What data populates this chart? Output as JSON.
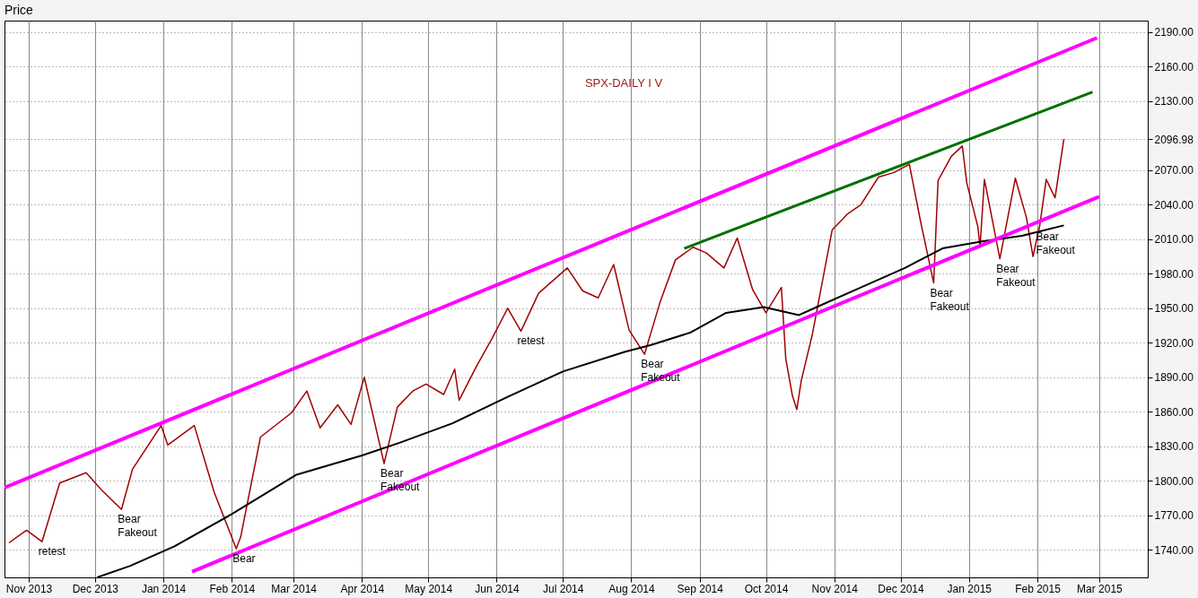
{
  "chart_data": {
    "type": "line",
    "title": "Price",
    "annotations": [
      "SPX-DAILY  I V",
      {
        "text": "retest",
        "x": "2013-11-07",
        "y": 1747
      },
      {
        "text": "Bear Fakeout",
        "x": "2013-12-13",
        "y": 1775
      },
      {
        "text": "Bear",
        "x": "2014-02-03",
        "y": 1741
      },
      {
        "text": "Bear Fakeout",
        "x": "2014-04-11",
        "y": 1815
      },
      {
        "text": "retest",
        "x": "2014-06-12",
        "y": 1930
      },
      {
        "text": "Bear Fakeout",
        "x": "2014-08-07",
        "y": 1910
      },
      {
        "text": "Bear Fakeout",
        "x": "2014-12-16",
        "y": 1972
      },
      {
        "text": "Bear Fakeout",
        "x": "2015-01-15",
        "y": 1993
      },
      {
        "text": "Bear Fakeout",
        "x": "2015-02-02",
        "y": 2021
      }
    ],
    "xlim": [
      "2013-10-21",
      "2015-03-23"
    ],
    "xticks": [
      {
        "value": "2013-11-01",
        "label": "Nov 2013"
      },
      {
        "value": "2013-12-01",
        "label": "Dec 2013"
      },
      {
        "value": "2014-01-01",
        "label": "Jan 2014"
      },
      {
        "value": "2014-02-01",
        "label": "Feb 2014"
      },
      {
        "value": "2014-03-01",
        "label": "Mar 2014"
      },
      {
        "value": "2014-04-01",
        "label": "Apr 2014"
      },
      {
        "value": "2014-05-01",
        "label": "May 2014"
      },
      {
        "value": "2014-06-01",
        "label": "Jun 2014"
      },
      {
        "value": "2014-07-01",
        "label": "Jul 2014"
      },
      {
        "value": "2014-08-01",
        "label": "Aug 2014"
      },
      {
        "value": "2014-09-01",
        "label": "Sep 2014"
      },
      {
        "value": "2014-10-01",
        "label": "Oct 2014"
      },
      {
        "value": "2014-11-01",
        "label": "Nov 2014"
      },
      {
        "value": "2014-12-01",
        "label": "Dec 2014"
      },
      {
        "value": "2015-01-01",
        "label": "Jan 2015"
      },
      {
        "value": "2015-02-01",
        "label": "Feb 2015"
      },
      {
        "value": "2015-03-01",
        "label": "Mar 2015"
      }
    ],
    "ylim": [
      1716,
      2200
    ],
    "yticks": [
      {
        "value": 1740,
        "label": "1740.00"
      },
      {
        "value": 1770,
        "label": "1770.00"
      },
      {
        "value": 1800,
        "label": "1800.00"
      },
      {
        "value": 1830,
        "label": "1830.00"
      },
      {
        "value": 1860,
        "label": "1860.00"
      },
      {
        "value": 1890,
        "label": "1890.00"
      },
      {
        "value": 1920,
        "label": "1920.00"
      },
      {
        "value": 1950,
        "label": "1950.00"
      },
      {
        "value": 1980,
        "label": "1980.00"
      },
      {
        "value": 2010,
        "label": "2010.00"
      },
      {
        "value": 2040,
        "label": "2040.00"
      },
      {
        "value": 2070,
        "label": "2070.00"
      },
      {
        "value": 2096.98,
        "label": "2096.98"
      },
      {
        "value": 2130,
        "label": "2130.00"
      },
      {
        "value": 2160,
        "label": "2160.00"
      },
      {
        "value": 2190,
        "label": "2190.00"
      }
    ],
    "grid": true,
    "series": [
      {
        "color": "#a00000",
        "x": [
          "2013-10-23",
          "2013-10-31",
          "2013-11-07",
          "2013-11-15",
          "2013-11-27",
          "2013-12-04",
          "2013-12-13",
          "2013-12-18",
          "2013-12-31",
          "2014-01-03",
          "2014-01-15",
          "2014-01-24",
          "2014-02-03",
          "2014-02-05",
          "2014-02-14",
          "2014-02-28",
          "2014-03-07",
          "2014-03-13",
          "2014-03-21",
          "2014-03-27",
          "2014-04-02",
          "2014-04-11",
          "2014-04-17",
          "2014-04-24",
          "2014-04-30",
          "2014-05-08",
          "2014-05-13",
          "2014-05-15",
          "2014-05-23",
          "2014-05-30",
          "2014-06-06",
          "2014-06-12",
          "2014-06-20",
          "2014-07-03",
          "2014-07-10",
          "2014-07-17",
          "2014-07-24",
          "2014-07-31",
          "2014-08-07",
          "2014-08-14",
          "2014-08-21",
          "2014-08-29",
          "2014-09-04",
          "2014-09-12",
          "2014-09-18",
          "2014-09-25",
          "2014-10-01",
          "2014-10-08",
          "2014-10-10",
          "2014-10-13",
          "2014-10-15",
          "2014-10-17",
          "2014-10-22",
          "2014-10-31",
          "2014-11-07",
          "2014-11-13",
          "2014-11-21",
          "2014-11-28",
          "2014-12-05",
          "2014-12-10",
          "2014-12-16",
          "2014-12-18",
          "2014-12-24",
          "2014-12-29",
          "2014-12-31",
          "2015-01-05",
          "2015-01-06",
          "2015-01-08",
          "2015-01-15",
          "2015-01-22",
          "2015-01-27",
          "2015-01-30",
          "2015-02-02",
          "2015-02-05",
          "2015-02-09",
          "2015-02-13"
        ],
        "values": [
          1746,
          1757,
          1747,
          1798,
          1807,
          1792,
          1775,
          1810,
          1848,
          1831,
          1848,
          1790,
          1741,
          1751,
          1838,
          1859,
          1878,
          1846,
          1866,
          1849,
          1890,
          1815,
          1864,
          1878,
          1884,
          1875,
          1897,
          1870,
          1900,
          1924,
          1950,
          1930,
          1963,
          1985,
          1965,
          1959,
          1988,
          1931,
          1910,
          1955,
          1992,
          2003,
          1998,
          1985,
          2011,
          1966,
          1946,
          1968,
          1906,
          1874,
          1862,
          1887,
          1927,
          2018,
          2032,
          2040,
          2064,
          2068,
          2075,
          2026,
          1972,
          2061,
          2082,
          2091,
          2059,
          2021,
          2003,
          2062,
          1993,
          2063,
          2029,
          1995,
          2021,
          2062,
          2046,
          2096.98
        ]
      },
      {
        "color": "#000000",
        "x": [
          "2013-12-02",
          "2013-12-17",
          "2014-01-06",
          "2014-02-01",
          "2014-03-02",
          "2014-04-01",
          "2014-04-18",
          "2014-05-12",
          "2014-06-06",
          "2014-07-01",
          "2014-07-29",
          "2014-08-10",
          "2014-08-28",
          "2014-09-13",
          "2014-09-30",
          "2014-10-16",
          "2014-10-24",
          "2014-11-13",
          "2014-12-03",
          "2014-12-20",
          "2015-01-07",
          "2015-01-25",
          "2015-02-13"
        ],
        "values": [
          1716,
          1726,
          1743,
          1771,
          1805,
          1822,
          1833,
          1850,
          1873,
          1895,
          1912,
          1918,
          1929,
          1946,
          1951,
          1944,
          1951,
          1968,
          1985,
          2002,
          2008,
          2013,
          2022.01
        ]
      },
      {
        "color": "#ff00ff",
        "x": [
          "2013-10-21",
          "2015-02-28"
        ],
        "values": [
          1794,
          2185
        ]
      },
      {
        "color": "#ff00ff",
        "x": [
          "2014-01-14",
          "2015-03-01"
        ],
        "values": [
          1721,
          2047
        ]
      },
      {
        "color": "#007000",
        "x": [
          "2014-08-25",
          "2015-02-26"
        ],
        "values": [
          2002,
          2138
        ]
      }
    ]
  }
}
